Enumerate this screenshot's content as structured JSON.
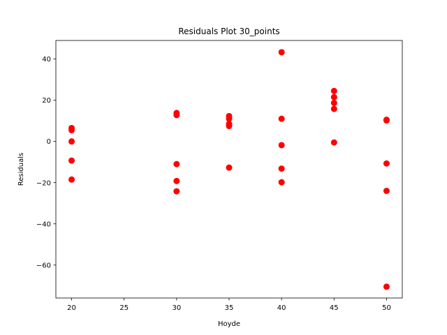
{
  "chart_data": {
    "type": "scatter",
    "title": "Residuals Plot 30_points",
    "xlabel": "Hoyde",
    "ylabel": "Residuals",
    "xlim": [
      18.5,
      51.5
    ],
    "ylim": [
      -76,
      49
    ],
    "xticks": [
      20,
      25,
      30,
      35,
      40,
      45,
      50
    ],
    "yticks": [
      -60,
      -40,
      -20,
      0,
      20,
      40
    ],
    "grid": false,
    "marker_color": "#ff0000",
    "series": [
      {
        "points": [
          {
            "x": 20,
            "y": 6.5
          },
          {
            "x": 20,
            "y": 5.5
          },
          {
            "x": 20,
            "y": 0.0
          },
          {
            "x": 20,
            "y": -9.3
          },
          {
            "x": 20,
            "y": -18.5
          },
          {
            "x": 30,
            "y": 13.8
          },
          {
            "x": 30,
            "y": 12.8
          },
          {
            "x": 30,
            "y": -11.0
          },
          {
            "x": 30,
            "y": -19.2
          },
          {
            "x": 30,
            "y": -24.2
          },
          {
            "x": 35,
            "y": 12.3
          },
          {
            "x": 35,
            "y": 11.0
          },
          {
            "x": 35,
            "y": 8.5
          },
          {
            "x": 35,
            "y": 7.5
          },
          {
            "x": 35,
            "y": -12.7
          },
          {
            "x": 40,
            "y": 43.3
          },
          {
            "x": 40,
            "y": 11.0
          },
          {
            "x": 40,
            "y": -1.8
          },
          {
            "x": 40,
            "y": -13.2
          },
          {
            "x": 40,
            "y": -19.8
          },
          {
            "x": 45,
            "y": 24.5
          },
          {
            "x": 45,
            "y": 21.5
          },
          {
            "x": 45,
            "y": 18.7
          },
          {
            "x": 45,
            "y": 15.8
          },
          {
            "x": 45,
            "y": -0.5
          },
          {
            "x": 50,
            "y": 10.5
          },
          {
            "x": 50,
            "y": 10.2
          },
          {
            "x": 50,
            "y": -10.7
          },
          {
            "x": 50,
            "y": -24.0
          },
          {
            "x": 50,
            "y": -70.5
          }
        ]
      }
    ]
  }
}
